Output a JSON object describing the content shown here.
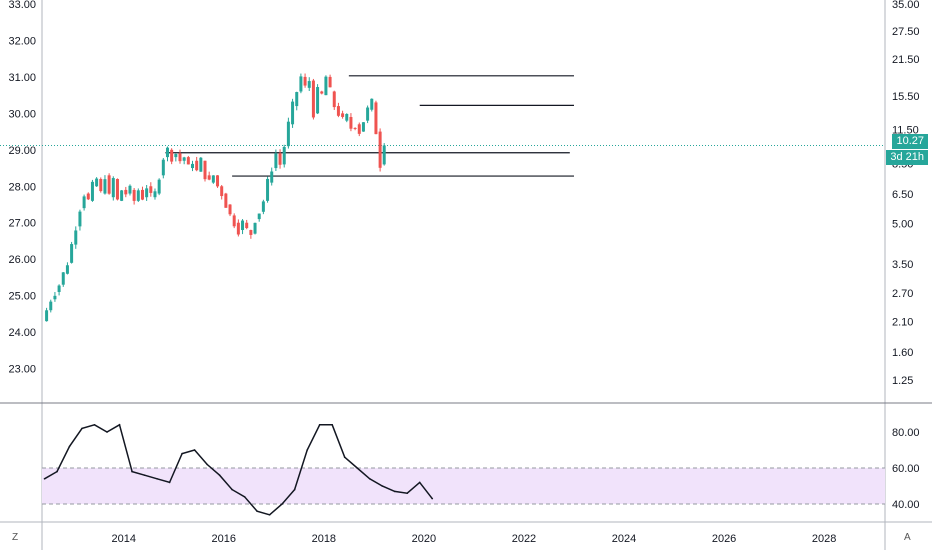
{
  "colors": {
    "up": "#26a69a",
    "down": "#ef5350",
    "level_line": "#131722",
    "price_line": "#26a69a",
    "rsi_line": "#131722",
    "rsi_band": "#f1e3fb",
    "rsi_band_border": "#9598a1",
    "grid": "#e0e3eb"
  },
  "corner_left": "Z",
  "corner_right": "A",
  "badges": {
    "last_value": "10.27",
    "countdown": "3d 21h"
  },
  "chart_data": [
    {
      "type": "candlestick",
      "title": "",
      "x_axis": {
        "type": "date",
        "range": [
          "2012-06",
          "2028-12"
        ],
        "tick_labels": [
          "2014",
          "2016",
          "2018",
          "2020",
          "2022",
          "2024",
          "2026",
          "2028"
        ]
      },
      "y_left": {
        "range": [
          22.0,
          33.0
        ],
        "tick_labels": [
          "23.00",
          "24.00",
          "25.00",
          "26.00",
          "27.00",
          "28.00",
          "29.00",
          "30.00",
          "31.00",
          "32.00",
          "33.00"
        ]
      },
      "y_right": {
        "scale": "log",
        "tick_labels": [
          "1.25",
          "1.60",
          "2.10",
          "2.70",
          "3.50",
          "5.00",
          "6.50",
          "8.50",
          "11.50",
          "15.50",
          "21.50",
          "27.50",
          "35.00"
        ]
      },
      "last_price": 29.12,
      "horizontal_levels": [
        {
          "value": 31.03,
          "from": "2018-07",
          "to": "2023-01"
        },
        {
          "value": 30.22,
          "from": "2019-12",
          "to": "2023-01"
        },
        {
          "value": 28.92,
          "from": "2014-11",
          "to": "2022-12"
        },
        {
          "value": 28.28,
          "from": "2016-03",
          "to": "2023-01"
        }
      ],
      "candles_weekly_close_path": [
        {
          "x": "2012-06",
          "o": 24.3,
          "c": 24.6
        },
        {
          "x": "2012-07",
          "o": 24.6,
          "c": 24.9
        },
        {
          "x": "2012-08",
          "o": 24.9,
          "c": 25.1
        },
        {
          "x": "2012-09",
          "o": 25.1,
          "c": 25.3
        },
        {
          "x": "2012-10",
          "o": 25.3,
          "c": 25.6
        },
        {
          "x": "2012-11",
          "o": 25.6,
          "c": 25.9
        },
        {
          "x": "2012-12",
          "o": 25.9,
          "c": 26.4
        },
        {
          "x": "2013-01",
          "o": 26.4,
          "c": 26.9
        },
        {
          "x": "2013-02",
          "o": 26.9,
          "c": 27.4
        },
        {
          "x": "2013-03",
          "o": 27.4,
          "c": 27.8
        },
        {
          "x": "2013-04",
          "o": 27.8,
          "c": 27.6
        },
        {
          "x": "2013-05",
          "o": 27.6,
          "c": 28.0
        },
        {
          "x": "2013-06",
          "o": 28.0,
          "c": 28.2
        },
        {
          "x": "2013-07",
          "o": 28.2,
          "c": 27.8
        },
        {
          "x": "2013-08",
          "o": 27.8,
          "c": 28.3
        },
        {
          "x": "2013-09",
          "o": 28.3,
          "c": 27.7
        },
        {
          "x": "2013-10",
          "o": 27.7,
          "c": 28.2
        },
        {
          "x": "2013-11",
          "o": 28.2,
          "c": 27.6
        },
        {
          "x": "2013-12",
          "o": 27.6,
          "c": 27.9
        },
        {
          "x": "2014-01",
          "o": 27.9,
          "c": 27.8
        },
        {
          "x": "2014-02",
          "o": 27.8,
          "c": 27.9
        },
        {
          "x": "2014-03",
          "o": 27.9,
          "c": 27.6
        },
        {
          "x": "2014-04",
          "o": 27.6,
          "c": 27.9
        },
        {
          "x": "2014-05",
          "o": 27.9,
          "c": 27.7
        },
        {
          "x": "2014-06",
          "o": 27.7,
          "c": 28.0
        },
        {
          "x": "2014-07",
          "o": 28.0,
          "c": 27.7
        },
        {
          "x": "2014-08",
          "o": 27.7,
          "c": 27.8
        },
        {
          "x": "2014-09",
          "o": 27.8,
          "c": 28.3
        },
        {
          "x": "2014-10",
          "o": 28.3,
          "c": 28.8
        },
        {
          "x": "2014-11",
          "o": 28.8,
          "c": 29.0
        },
        {
          "x": "2014-12",
          "o": 29.0,
          "c": 28.8
        },
        {
          "x": "2015-01",
          "o": 28.8,
          "c": 28.9
        },
        {
          "x": "2015-02",
          "o": 28.9,
          "c": 28.7
        },
        {
          "x": "2015-03",
          "o": 28.7,
          "c": 28.8
        },
        {
          "x": "2015-04",
          "o": 28.8,
          "c": 28.5
        },
        {
          "x": "2015-05",
          "o": 28.5,
          "c": 28.7
        },
        {
          "x": "2015-06",
          "o": 28.7,
          "c": 28.4
        },
        {
          "x": "2015-07",
          "o": 28.4,
          "c": 28.7
        },
        {
          "x": "2015-08",
          "o": 28.7,
          "c": 28.3
        },
        {
          "x": "2015-09",
          "o": 28.3,
          "c": 28.1
        },
        {
          "x": "2015-10",
          "o": 28.1,
          "c": 28.3
        },
        {
          "x": "2015-11",
          "o": 28.3,
          "c": 28.0
        },
        {
          "x": "2015-12",
          "o": 28.0,
          "c": 27.8
        },
        {
          "x": "2016-01",
          "o": 27.8,
          "c": 27.5
        },
        {
          "x": "2016-02",
          "o": 27.5,
          "c": 27.2
        },
        {
          "x": "2016-03",
          "o": 27.2,
          "c": 27.0
        },
        {
          "x": "2016-04",
          "o": 27.0,
          "c": 26.8
        },
        {
          "x": "2016-05",
          "o": 26.8,
          "c": 27.0
        },
        {
          "x": "2016-06",
          "o": 27.0,
          "c": 26.8
        },
        {
          "x": "2016-07",
          "o": 26.8,
          "c": 26.7
        },
        {
          "x": "2016-08",
          "o": 26.7,
          "c": 27.1
        },
        {
          "x": "2016-09",
          "o": 27.1,
          "c": 27.3
        },
        {
          "x": "2016-10",
          "o": 27.3,
          "c": 27.6
        },
        {
          "x": "2016-11",
          "o": 27.6,
          "c": 28.1
        },
        {
          "x": "2016-12",
          "o": 28.1,
          "c": 28.5
        },
        {
          "x": "2017-01",
          "o": 28.5,
          "c": 28.9
        },
        {
          "x": "2017-02",
          "o": 28.9,
          "c": 28.6
        },
        {
          "x": "2017-03",
          "o": 28.6,
          "c": 29.1
        },
        {
          "x": "2017-04",
          "o": 29.1,
          "c": 29.7
        },
        {
          "x": "2017-05",
          "o": 29.7,
          "c": 30.2
        },
        {
          "x": "2017-06",
          "o": 30.2,
          "c": 30.6
        },
        {
          "x": "2017-07",
          "o": 30.6,
          "c": 31.0
        },
        {
          "x": "2017-08",
          "o": 31.0,
          "c": 30.7
        },
        {
          "x": "2017-09",
          "o": 30.7,
          "c": 30.9
        },
        {
          "x": "2017-10",
          "o": 30.9,
          "c": 30.0
        },
        {
          "x": "2017-11",
          "o": 30.0,
          "c": 30.6
        },
        {
          "x": "2017-12",
          "o": 30.6,
          "c": 30.5
        },
        {
          "x": "2018-01",
          "o": 30.5,
          "c": 31.0
        },
        {
          "x": "2018-02",
          "o": 31.0,
          "c": 30.6
        },
        {
          "x": "2018-03",
          "o": 30.6,
          "c": 30.2
        },
        {
          "x": "2018-04",
          "o": 30.2,
          "c": 30.0
        },
        {
          "x": "2018-05",
          "o": 30.0,
          "c": 29.8
        },
        {
          "x": "2018-06",
          "o": 29.8,
          "c": 29.9
        },
        {
          "x": "2018-07",
          "o": 29.9,
          "c": 29.6
        },
        {
          "x": "2018-08",
          "o": 29.6,
          "c": 29.7
        },
        {
          "x": "2018-09",
          "o": 29.7,
          "c": 29.5
        },
        {
          "x": "2018-10",
          "o": 29.5,
          "c": 29.8
        },
        {
          "x": "2018-11",
          "o": 29.8,
          "c": 30.1
        },
        {
          "x": "2018-12",
          "o": 30.1,
          "c": 30.3
        },
        {
          "x": "2019-01",
          "o": 30.3,
          "c": 29.5
        },
        {
          "x": "2019-02",
          "o": 29.5,
          "c": 28.6
        },
        {
          "x": "2019-03",
          "o": 28.6,
          "c": 29.12
        }
      ],
      "series": [
        {
          "name": "",
          "type": "candlestick"
        }
      ]
    },
    {
      "type": "line",
      "title": "",
      "ylim": [
        30,
        95
      ],
      "band": [
        40,
        60
      ],
      "y_tick_labels": [
        "40.00",
        "60.00",
        "80.00"
      ],
      "x": [
        "2012-06",
        "2012-09",
        "2012-12",
        "2013-03",
        "2013-06",
        "2013-09",
        "2013-12",
        "2014-03",
        "2014-06",
        "2014-09",
        "2014-12",
        "2015-03",
        "2015-06",
        "2015-09",
        "2015-12",
        "2016-03",
        "2016-06",
        "2016-09",
        "2016-12",
        "2017-03",
        "2017-06",
        "2017-09",
        "2017-12",
        "2018-03",
        "2018-06",
        "2018-09",
        "2018-12",
        "2019-03",
        "2019-06",
        "2019-09",
        "2019-12",
        "2020-03"
      ],
      "series": [
        {
          "name": "",
          "values": [
            54,
            58,
            72,
            82,
            84,
            80,
            84,
            58,
            56,
            54,
            52,
            68,
            70,
            62,
            56,
            48,
            44,
            36,
            34,
            40,
            48,
            70,
            84,
            84,
            66,
            60,
            54,
            50,
            47,
            46,
            52,
            43
          ]
        }
      ]
    }
  ]
}
